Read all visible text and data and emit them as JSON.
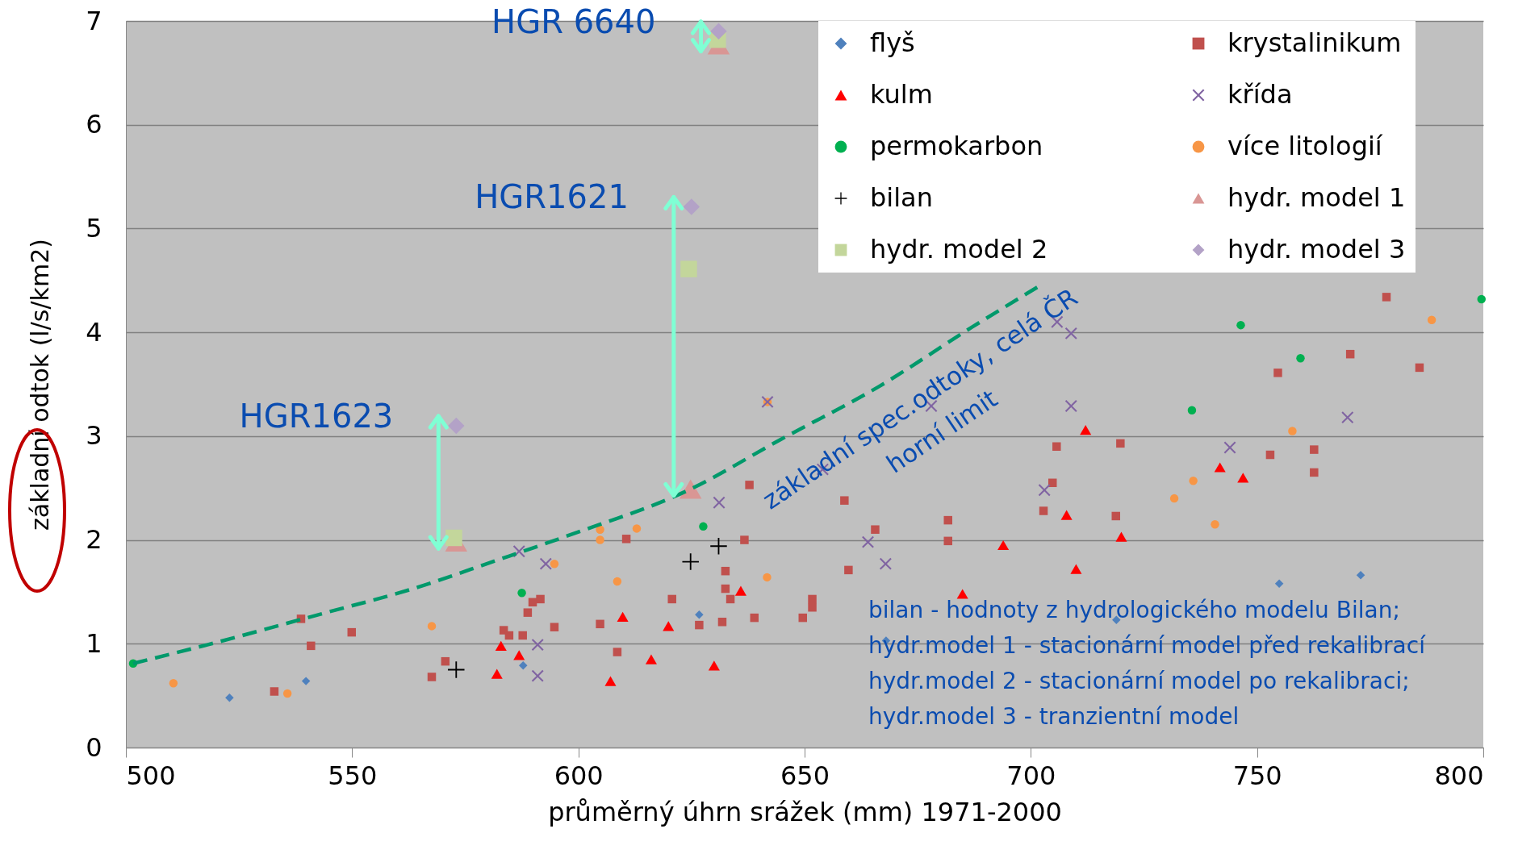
{
  "chart_data": {
    "type": "scatter",
    "xlabel": "průměrný úhrn srážek (mm) 1971-2000",
    "ylabel": "základní odtok (l/s/km2)",
    "xlim": [
      500,
      800
    ],
    "xticks": [
      500,
      550,
      600,
      650,
      700,
      750,
      800
    ],
    "ylim": [
      0,
      7
    ],
    "yticks": [
      0,
      1,
      2,
      3,
      4,
      5,
      6,
      7
    ],
    "grid": "y",
    "legend": "top right",
    "series": [
      {
        "name": "flyš",
        "color": "#4f81bd",
        "marker": "diamond",
        "x": [
          522.9,
          539.8,
          587.8,
          626.7,
          668,
          718.9,
          754.9,
          772.9
        ],
        "values": [
          0.48,
          0.64,
          0.79,
          1.28,
          1.03,
          1.23,
          1.58,
          1.66
        ]
      },
      {
        "name": "krystalinikum",
        "color": "#c0504d",
        "marker": "square",
        "x": [
          532.8,
          538.7,
          540.9,
          549.9,
          567.6,
          570.6,
          583.5,
          584.7,
          587.7,
          588.8,
          589.9,
          591.6,
          594.7,
          604.8,
          608.6,
          610.6,
          620.7,
          626.7,
          631.8,
          632.5,
          632.5,
          633.6,
          636.7,
          637.8,
          638.9,
          649.6,
          651.7,
          651.7,
          658.8,
          659.7,
          665.6,
          681.7,
          681.7,
          702.8,
          704.8,
          705.7,
          718.8,
          719.8,
          752.9,
          754.6,
          762.6,
          762.6,
          770.6,
          778.6,
          785.9
        ],
        "values": [
          0.54,
          1.24,
          0.98,
          1.11,
          0.68,
          0.83,
          1.13,
          1.08,
          1.08,
          1.3,
          1.4,
          1.43,
          1.16,
          1.19,
          0.92,
          2.01,
          1.43,
          1.18,
          1.21,
          1.7,
          1.53,
          1.43,
          2.0,
          2.53,
          1.25,
          1.25,
          1.43,
          1.35,
          2.38,
          1.71,
          2.1,
          2.19,
          1.99,
          2.28,
          2.55,
          2.9,
          2.23,
          2.93,
          2.82,
          3.61,
          2.87,
          2.65,
          3.79,
          4.34,
          3.66
        ]
      },
      {
        "name": "kulm",
        "color": "#ff0000",
        "marker": "triangle",
        "x": [
          582,
          582.9,
          586.9,
          607.1,
          609.8,
          616.1,
          619.9,
          630,
          635.9,
          684.9,
          693.9,
          707.9,
          710,
          712.1,
          720,
          741.8,
          746.9
        ],
        "values": [
          0.71,
          0.98,
          0.89,
          0.64,
          1.26,
          0.85,
          1.17,
          0.79,
          1.51,
          1.48,
          1.95,
          2.24,
          1.72,
          3.06,
          2.03,
          2.7,
          2.6
        ]
      },
      {
        "name": "křída",
        "color": "#8064a2",
        "marker": "cross",
        "x": [
          586.9,
          591,
          591,
          592.8,
          631.1,
          641.8,
          654,
          664,
          667.9,
          678,
          703,
          705.8,
          708.9,
          708.9,
          744,
          770
        ],
        "values": [
          1.89,
          0.99,
          0.69,
          1.77,
          2.36,
          3.33,
          2.68,
          1.98,
          1.77,
          3.29,
          2.48,
          4.1,
          3.99,
          3.29,
          2.89,
          3.18
        ]
      },
      {
        "name": "permokarbon",
        "color": "#00b050",
        "marker": "circle",
        "x": [
          501.6,
          587.5,
          627.6,
          735.6,
          746.4,
          759.6,
          799.6
        ],
        "values": [
          0.81,
          1.49,
          2.13,
          3.25,
          4.07,
          3.75,
          4.32
        ]
      },
      {
        "name": "více litologií",
        "color": "#f79646",
        "marker": "circle",
        "x": [
          510.5,
          535.7,
          567.6,
          594.7,
          604.8,
          604.8,
          608.6,
          612.9,
          641.7,
          641.8,
          731.7,
          735.9,
          740.7,
          757.8,
          788.6
        ],
        "values": [
          0.62,
          0.52,
          1.17,
          1.77,
          2.1,
          2.0,
          1.6,
          2.11,
          1.64,
          3.33,
          2.4,
          2.57,
          2.15,
          3.05,
          4.12
        ]
      },
      {
        "name": "bilan",
        "color": "#000000",
        "marker": "plus",
        "x": [
          573,
          624.8,
          631
        ],
        "values": [
          0.75,
          1.79,
          1.94
        ]
      },
      {
        "name": "hydr. model 1",
        "color": "#d99694",
        "marker": "triangle",
        "x": [
          573,
          624.8,
          631
        ],
        "values": [
          1.98,
          2.49,
          6.77
        ]
      },
      {
        "name": "hydr. model 2",
        "color": "#c3d69b",
        "marker": "square",
        "x": [
          572.5,
          624.4,
          630.8
        ],
        "values": [
          2.02,
          4.61,
          6.82
        ]
      },
      {
        "name": "hydr. model 3",
        "color": "#b3a2c7",
        "marker": "diamond",
        "x": [
          573,
          625,
          631
        ],
        "values": [
          3.1,
          5.21,
          6.9
        ]
      },
      {
        "type": "line",
        "color": "#00996b",
        "line_style": "dashed",
        "x": [
          501.6,
          518,
          543.4,
          562.7,
          581.7,
          597.6,
          624.8,
          644.8,
          666.5,
          687,
          702
        ],
        "values": [
          0.81,
          0.99,
          1.29,
          1.52,
          1.8,
          2.04,
          2.49,
          2.97,
          3.48,
          4.05,
          4.45
        ]
      }
    ],
    "annotations": [
      {
        "text": "HGR 6640",
        "x": 631,
        "y": 6.9
      },
      {
        "text": "HGR1621",
        "x": 625,
        "y": 5.21
      },
      {
        "text": "HGR1623",
        "x": 573,
        "y": 3.1
      },
      "základní spec.odtoky, celá ČR\nhorní limit",
      "bilan - hodnoty z hydrologického modelu Bilan;\nhydr.model 1 - stacionární model před rekalibrací\nhydr.model 2 - stacionární model po rekalibraci;\nhydr.model 3 - tranzientní model"
    ]
  }
}
